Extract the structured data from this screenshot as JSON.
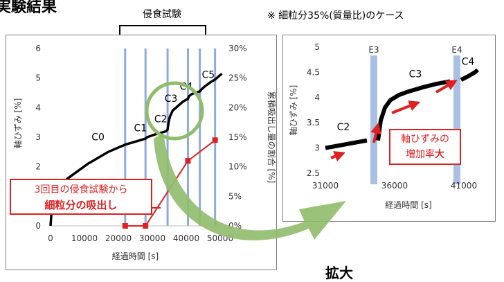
{
  "header": {
    "title": "実験結果",
    "note": "※ 細粒分35%(質量比)のケース",
    "bracket_label": "侵食試験"
  },
  "callouts": {
    "left_line1": "3回目の侵食試験から",
    "left_line2": "細粒分の吸出し",
    "right_line1": "軸ひずみの",
    "right_line2_pre": "増加率",
    "right_line2_bold": "大"
  },
  "zoom_label": "拡大",
  "colors": {
    "strain_line": "#000000",
    "suction": "#e02020",
    "erosion_bar": "#8faadc",
    "circle": "#8fbc6a",
    "arrow": "#90c060"
  },
  "chart_data": [
    {
      "type": "line",
      "xlabel": "経過時間 [s]",
      "ylabel": "軸ひずみ [%]",
      "y2label": "累積吸出し量の割合 [%]",
      "xlim": [
        0,
        50000
      ],
      "ylim": [
        0,
        6
      ],
      "y2lim": [
        0,
        30
      ],
      "xticks": [
        "0",
        "10000",
        "20000",
        "30000",
        "40000",
        "50000"
      ],
      "yticks": [
        "0",
        "1",
        "2",
        "3",
        "4",
        "5",
        "6"
      ],
      "y2ticks": [
        "0%",
        "5%",
        "10%",
        "15%",
        "20%",
        "25%",
        "30%"
      ],
      "erosion_test_times": [
        22000,
        28000,
        34500,
        40500,
        44000,
        48500
      ],
      "series": [
        {
          "axis": "left",
          "x": [
            0,
            300,
            1000,
            2500,
            5000,
            8000,
            11000,
            14000,
            17000,
            20000,
            21500,
            22000,
            25000,
            28000,
            28500,
            31000,
            34000,
            34500,
            34800,
            35200,
            36000,
            37500,
            39000,
            40500,
            40800,
            41500,
            42500,
            44000,
            44500,
            45500,
            47000,
            48500,
            49500,
            50500
          ],
          "y": [
            0,
            0.5,
            0.9,
            1.25,
            1.6,
            1.85,
            2.1,
            2.3,
            2.5,
            2.65,
            2.72,
            2.75,
            2.85,
            2.95,
            3.0,
            3.1,
            3.2,
            3.25,
            3.5,
            3.7,
            3.9,
            4.05,
            4.2,
            4.3,
            4.38,
            4.45,
            4.5,
            4.55,
            4.62,
            4.72,
            4.85,
            4.95,
            5.05,
            5.15
          ]
        },
        {
          "axis": "right",
          "x": [
            22000,
            28000,
            40500,
            48500
          ],
          "y": [
            0,
            0,
            11,
            14.5
          ]
        }
      ],
      "segment_labels": [
        {
          "text": "C0",
          "x": 14000,
          "y": 2.9
        },
        {
          "text": "C1",
          "x": 26500,
          "y": 3.2
        },
        {
          "text": "C2",
          "x": 32500,
          "y": 3.5
        },
        {
          "text": "C3",
          "x": 35500,
          "y": 4.2
        },
        {
          "text": "C4",
          "x": 40000,
          "y": 4.6
        },
        {
          "text": "C5",
          "x": 46500,
          "y": 5.0
        }
      ]
    },
    {
      "type": "line",
      "xlabel": "経過時間 [s]",
      "ylabel": "軸ひずみ [%]",
      "xlim": [
        31000,
        42000
      ],
      "ylim": [
        2.5,
        5
      ],
      "xticks": [
        "31000",
        "36000",
        "41000"
      ],
      "yticks": [
        "2.5",
        "3",
        "3.5",
        "4",
        "4.5",
        "5"
      ],
      "erosion_tests": [
        {
          "name": "E3",
          "x": 34500
        },
        {
          "name": "E4",
          "x": 40500
        }
      ],
      "segments": [
        {
          "x": [
            31000,
            32000,
            33000,
            34000
          ],
          "y": [
            3.0,
            3.05,
            3.1,
            3.15
          ]
        },
        {
          "x": [
            34800,
            35000,
            35300,
            35700,
            36300,
            37000,
            38000,
            39000,
            40000
          ],
          "y": [
            3.15,
            3.55,
            3.8,
            3.95,
            4.05,
            4.12,
            4.2,
            4.27,
            4.32
          ]
        },
        {
          "x": [
            40800,
            41300,
            41800,
            42000
          ],
          "y": [
            4.35,
            4.42,
            4.5,
            4.55
          ]
        }
      ],
      "segment_labels": [
        {
          "text": "C2",
          "x": 32300,
          "y": 3.35
        },
        {
          "text": "C3",
          "x": 37500,
          "y": 4.4
        },
        {
          "text": "C4",
          "x": 41300,
          "y": 4.65
        }
      ]
    }
  ]
}
